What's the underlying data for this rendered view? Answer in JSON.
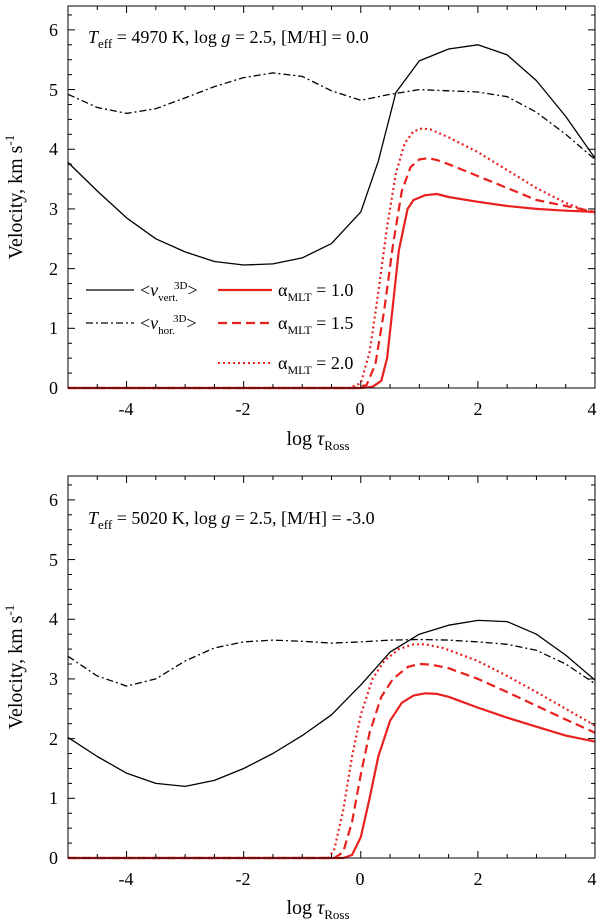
{
  "chart_data": [
    {
      "type": "line",
      "title_parts": {
        "teff_sym": "T",
        "teff_sub": "eff",
        "rest": " = 4970 K, log ",
        "g_sym": "g",
        "tail": " = 2.5, [M/H] = 0.0"
      },
      "xlabel": {
        "main": "log ",
        "sym": "τ",
        "sub": "Ross"
      },
      "ylabel": {
        "main": "Velocity, km s",
        "sup": "-1"
      },
      "xlim": [
        -5,
        4
      ],
      "ylim": [
        0,
        6.4
      ],
      "xticks": [
        "-4",
        "-2",
        "0",
        "2",
        "4"
      ],
      "xtick_values": [
        -4,
        -2,
        0,
        2,
        4
      ],
      "yticks": [
        "0",
        "1",
        "2",
        "3",
        "4",
        "5",
        "6"
      ],
      "ytick_values": [
        0,
        1,
        2,
        3,
        4,
        5,
        6
      ],
      "legend": {
        "position": "center-left",
        "v_label": "v",
        "sup": "3D",
        "vert_sub": "vert.",
        "hor_sub": "hor.",
        "alpha_sym": "α",
        "alpha_sub": "MLT",
        "entries": [
          " = 1.0",
          " = 1.5",
          " = 2.0"
        ]
      },
      "series": [
        {
          "name": "<v_vert^3D>",
          "style": "solid",
          "color": "#000000",
          "x": [
            -5,
            -4.5,
            -4,
            -3.5,
            -3,
            -2.5,
            -2,
            -1.5,
            -1,
            -0.5,
            0,
            0.3,
            0.6,
            1,
            1.5,
            2,
            2.5,
            3,
            3.5,
            4
          ],
          "y": [
            3.78,
            3.3,
            2.85,
            2.5,
            2.28,
            2.12,
            2.06,
            2.08,
            2.18,
            2.42,
            2.95,
            3.8,
            4.95,
            5.48,
            5.68,
            5.75,
            5.58,
            5.15,
            4.55,
            3.85
          ]
        },
        {
          "name": "<v_hor^3D>",
          "style": "dashdot",
          "color": "#000000",
          "x": [
            -5,
            -4.5,
            -4,
            -3.5,
            -3,
            -2.5,
            -2,
            -1.5,
            -1,
            -0.5,
            0,
            0.5,
            1,
            1.5,
            2,
            2.5,
            3,
            3.5,
            4
          ],
          "y": [
            4.92,
            4.7,
            4.6,
            4.68,
            4.86,
            5.05,
            5.2,
            5.28,
            5.22,
            4.98,
            4.82,
            4.92,
            5.0,
            4.98,
            4.96,
            4.88,
            4.62,
            4.25,
            3.83
          ]
        },
        {
          "name": "α_MLT = 1.0",
          "style": "solid",
          "color": "#e8201e",
          "x": [
            -5,
            0.0,
            0.2,
            0.35,
            0.45,
            0.55,
            0.65,
            0.8,
            0.9,
            1.1,
            1.3,
            1.5,
            2,
            2.5,
            3,
            3.5,
            4
          ],
          "y": [
            0,
            0,
            0.02,
            0.12,
            0.5,
            1.4,
            2.3,
            3.0,
            3.15,
            3.23,
            3.25,
            3.2,
            3.12,
            3.05,
            3.0,
            2.97,
            2.95
          ]
        },
        {
          "name": "α_MLT = 1.5",
          "style": "dashed",
          "color": "#e8201e",
          "x": [
            -5,
            -0.1,
            0.1,
            0.25,
            0.4,
            0.55,
            0.7,
            0.85,
            1.0,
            1.15,
            1.3,
            1.5,
            2,
            2.5,
            3,
            3.5,
            4
          ],
          "y": [
            0,
            0,
            0.05,
            0.4,
            1.3,
            2.4,
            3.3,
            3.7,
            3.83,
            3.85,
            3.82,
            3.75,
            3.55,
            3.35,
            3.15,
            3.05,
            2.95
          ]
        },
        {
          "name": "α_MLT = 2.0",
          "style": "dotted",
          "color": "#e8201e",
          "x": [
            -5,
            -0.2,
            0.0,
            0.15,
            0.3,
            0.45,
            0.6,
            0.75,
            0.9,
            1.05,
            1.2,
            1.5,
            2,
            2.5,
            3,
            3.5,
            4
          ],
          "y": [
            0,
            0,
            0.08,
            0.6,
            1.6,
            2.7,
            3.6,
            4.1,
            4.3,
            4.35,
            4.33,
            4.2,
            3.95,
            3.65,
            3.35,
            3.1,
            2.92
          ]
        }
      ]
    },
    {
      "type": "line",
      "title_parts": {
        "teff_sym": "T",
        "teff_sub": "eff",
        "rest": " = 5020 K, log ",
        "g_sym": "g",
        "tail": " = 2.5, [M/H] = -3.0"
      },
      "xlabel": {
        "main": "log ",
        "sym": "τ",
        "sub": "Ross"
      },
      "ylabel": {
        "main": "Velocity, km s",
        "sup": "-1"
      },
      "xlim": [
        -5,
        4
      ],
      "ylim": [
        0,
        6.4
      ],
      "xticks": [
        "-4",
        "-2",
        "0",
        "2",
        "4"
      ],
      "xtick_values": [
        -4,
        -2,
        0,
        2,
        4
      ],
      "yticks": [
        "0",
        "1",
        "2",
        "3",
        "4",
        "5",
        "6"
      ],
      "ytick_values": [
        0,
        1,
        2,
        3,
        4,
        5,
        6
      ],
      "series": [
        {
          "name": "<v_vert^3D>",
          "style": "solid",
          "color": "#000000",
          "x": [
            -5,
            -4.5,
            -4,
            -3.5,
            -3,
            -2.5,
            -2,
            -1.5,
            -1,
            -0.5,
            0,
            0.5,
            1,
            1.5,
            2,
            2.5,
            3,
            3.5,
            4
          ],
          "y": [
            2.02,
            1.7,
            1.42,
            1.25,
            1.2,
            1.3,
            1.5,
            1.75,
            2.05,
            2.4,
            2.9,
            3.45,
            3.75,
            3.9,
            3.98,
            3.96,
            3.75,
            3.4,
            2.98
          ]
        },
        {
          "name": "<v_hor^3D>",
          "style": "dashdot",
          "color": "#000000",
          "x": [
            -5,
            -4.5,
            -4,
            -3.5,
            -3,
            -2.5,
            -2,
            -1.5,
            -1,
            -0.5,
            0,
            0.5,
            1,
            1.5,
            2,
            2.5,
            3,
            3.5,
            4
          ],
          "y": [
            3.38,
            3.05,
            2.88,
            3.0,
            3.3,
            3.52,
            3.62,
            3.65,
            3.63,
            3.6,
            3.62,
            3.65,
            3.66,
            3.65,
            3.62,
            3.58,
            3.48,
            3.25,
            2.92
          ]
        },
        {
          "name": "α_MLT = 1.0",
          "style": "solid",
          "color": "#e8201e",
          "x": [
            -5,
            -0.3,
            -0.15,
            0.0,
            0.15,
            0.3,
            0.5,
            0.7,
            0.9,
            1.1,
            1.3,
            1.5,
            2,
            2.5,
            3,
            3.5,
            4
          ],
          "y": [
            0,
            0,
            0.05,
            0.35,
            1.0,
            1.7,
            2.3,
            2.6,
            2.72,
            2.76,
            2.75,
            2.7,
            2.52,
            2.35,
            2.2,
            2.05,
            1.95
          ]
        },
        {
          "name": "α_MLT = 1.5",
          "style": "dashed",
          "color": "#e8201e",
          "x": [
            -5,
            -0.45,
            -0.3,
            -0.15,
            0.0,
            0.15,
            0.35,
            0.55,
            0.8,
            1.0,
            1.2,
            1.5,
            2,
            2.5,
            3,
            3.5,
            4
          ],
          "y": [
            0,
            0,
            0.1,
            0.6,
            1.4,
            2.1,
            2.7,
            3.0,
            3.2,
            3.25,
            3.24,
            3.18,
            3.0,
            2.78,
            2.55,
            2.32,
            2.1
          ]
        },
        {
          "name": "α_MLT = 2.0",
          "style": "dotted",
          "color": "#e8201e",
          "x": [
            -5,
            -0.55,
            -0.45,
            -0.3,
            -0.15,
            0.0,
            0.2,
            0.4,
            0.65,
            0.9,
            1.1,
            1.4,
            2,
            2.5,
            3,
            3.5,
            4
          ],
          "y": [
            0,
            0,
            0.15,
            0.8,
            1.7,
            2.4,
            3.0,
            3.3,
            3.5,
            3.58,
            3.58,
            3.52,
            3.3,
            3.05,
            2.78,
            2.5,
            2.22
          ]
        }
      ]
    }
  ]
}
